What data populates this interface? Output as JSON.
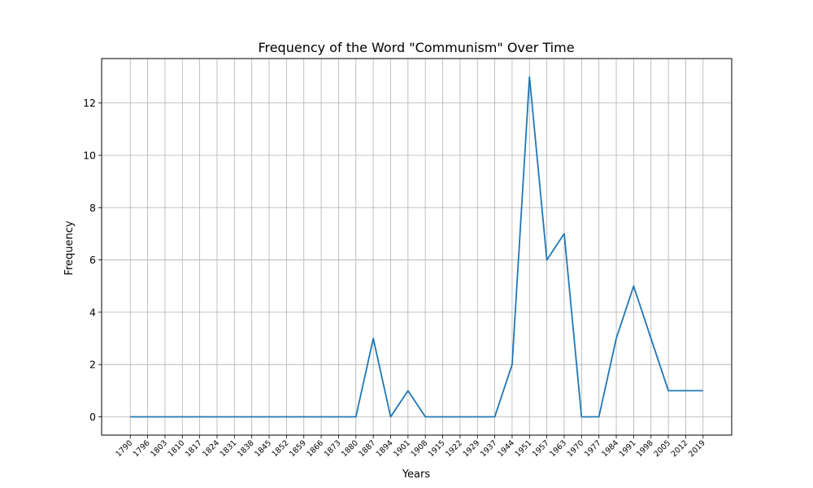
{
  "chart_data": {
    "type": "line",
    "title": "Frequency of the Word \"Communism\" Over Time",
    "xlabel": "Years",
    "ylabel": "Frequency",
    "ylim": [
      -0.7,
      13.7
    ],
    "y_ticks": [
      0,
      2,
      4,
      6,
      8,
      10,
      12
    ],
    "grid": true,
    "x": [
      "1790",
      "1796",
      "1803",
      "1810",
      "1817",
      "1824",
      "1831",
      "1838",
      "1845",
      "1852",
      "1859",
      "1866",
      "1873",
      "1880",
      "1887",
      "1894",
      "1901",
      "1908",
      "1915",
      "1922",
      "1929",
      "1937",
      "1944",
      "1951",
      "1957",
      "1963",
      "1970",
      "1977",
      "1984",
      "1991",
      "1998",
      "2005",
      "2012",
      "2019"
    ],
    "series": [
      {
        "values": [
          0,
          0,
          0,
          0,
          0,
          0,
          0,
          0,
          0,
          0,
          0,
          0,
          0,
          0,
          3,
          0,
          1,
          0,
          0,
          0,
          0,
          0,
          2,
          13,
          6,
          7,
          0,
          0,
          3,
          5,
          3,
          1,
          1,
          1
        ],
        "color": "#1f77b4"
      }
    ]
  },
  "colors": {
    "line": "#1f77b4",
    "grid": "#b0b0b0",
    "axes": "#000000"
  }
}
